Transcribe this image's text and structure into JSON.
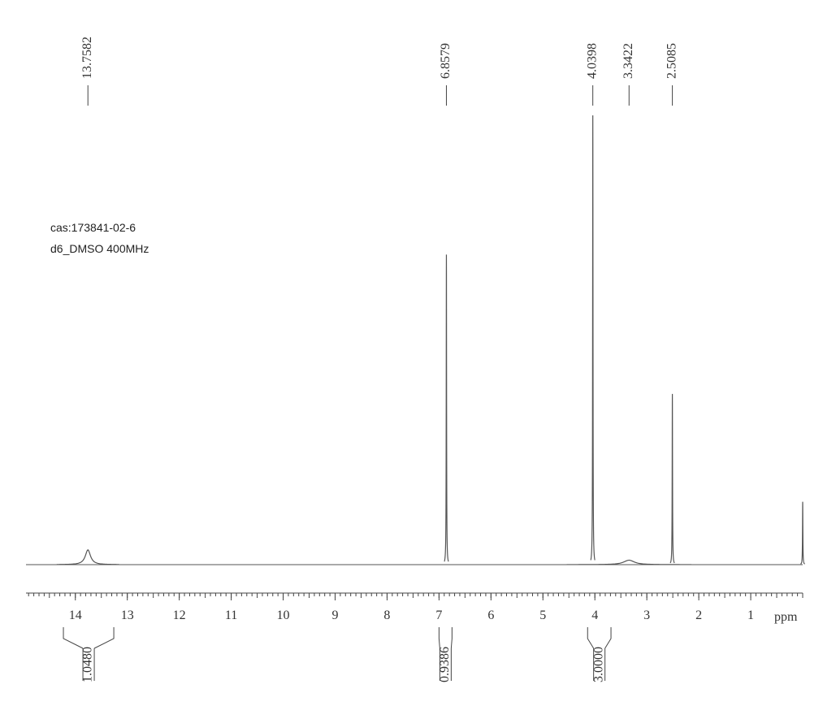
{
  "chart_data": {
    "type": "nmr",
    "annotations": [
      "cas:173841-02-6",
      "d6_DMSO 400MHz"
    ],
    "x_label": "ppm",
    "xlim": [
      14.95,
      0
    ],
    "xticks": [
      14,
      13,
      12,
      11,
      10,
      9,
      8,
      7,
      6,
      5,
      4,
      3,
      2,
      1
    ],
    "minor_step": 0.1,
    "ylim": [
      0,
      100
    ],
    "color": "#555555",
    "picked_peaks": [
      13.7582,
      6.8579,
      4.0398,
      3.3422,
      2.5085
    ],
    "x": [
      13.7582,
      6.8579,
      4.0398,
      3.3422,
      2.5085,
      0
    ],
    "values": [
      3.3,
      69,
      100,
      1,
      38,
      14
    ],
    "widths": [
      0.06,
      0.004,
      0.004,
      0.12,
      0.004,
      0.004
    ],
    "integrals": {
      "ranges": [
        [
          14.23,
          13.26
        ],
        [
          7.0,
          6.75
        ],
        [
          4.14,
          3.69
        ]
      ],
      "values": [
        1.048,
        0.9386,
        3
      ],
      "value_labels": [
        "1.0480",
        "0.9386",
        "3.0000"
      ]
    }
  }
}
